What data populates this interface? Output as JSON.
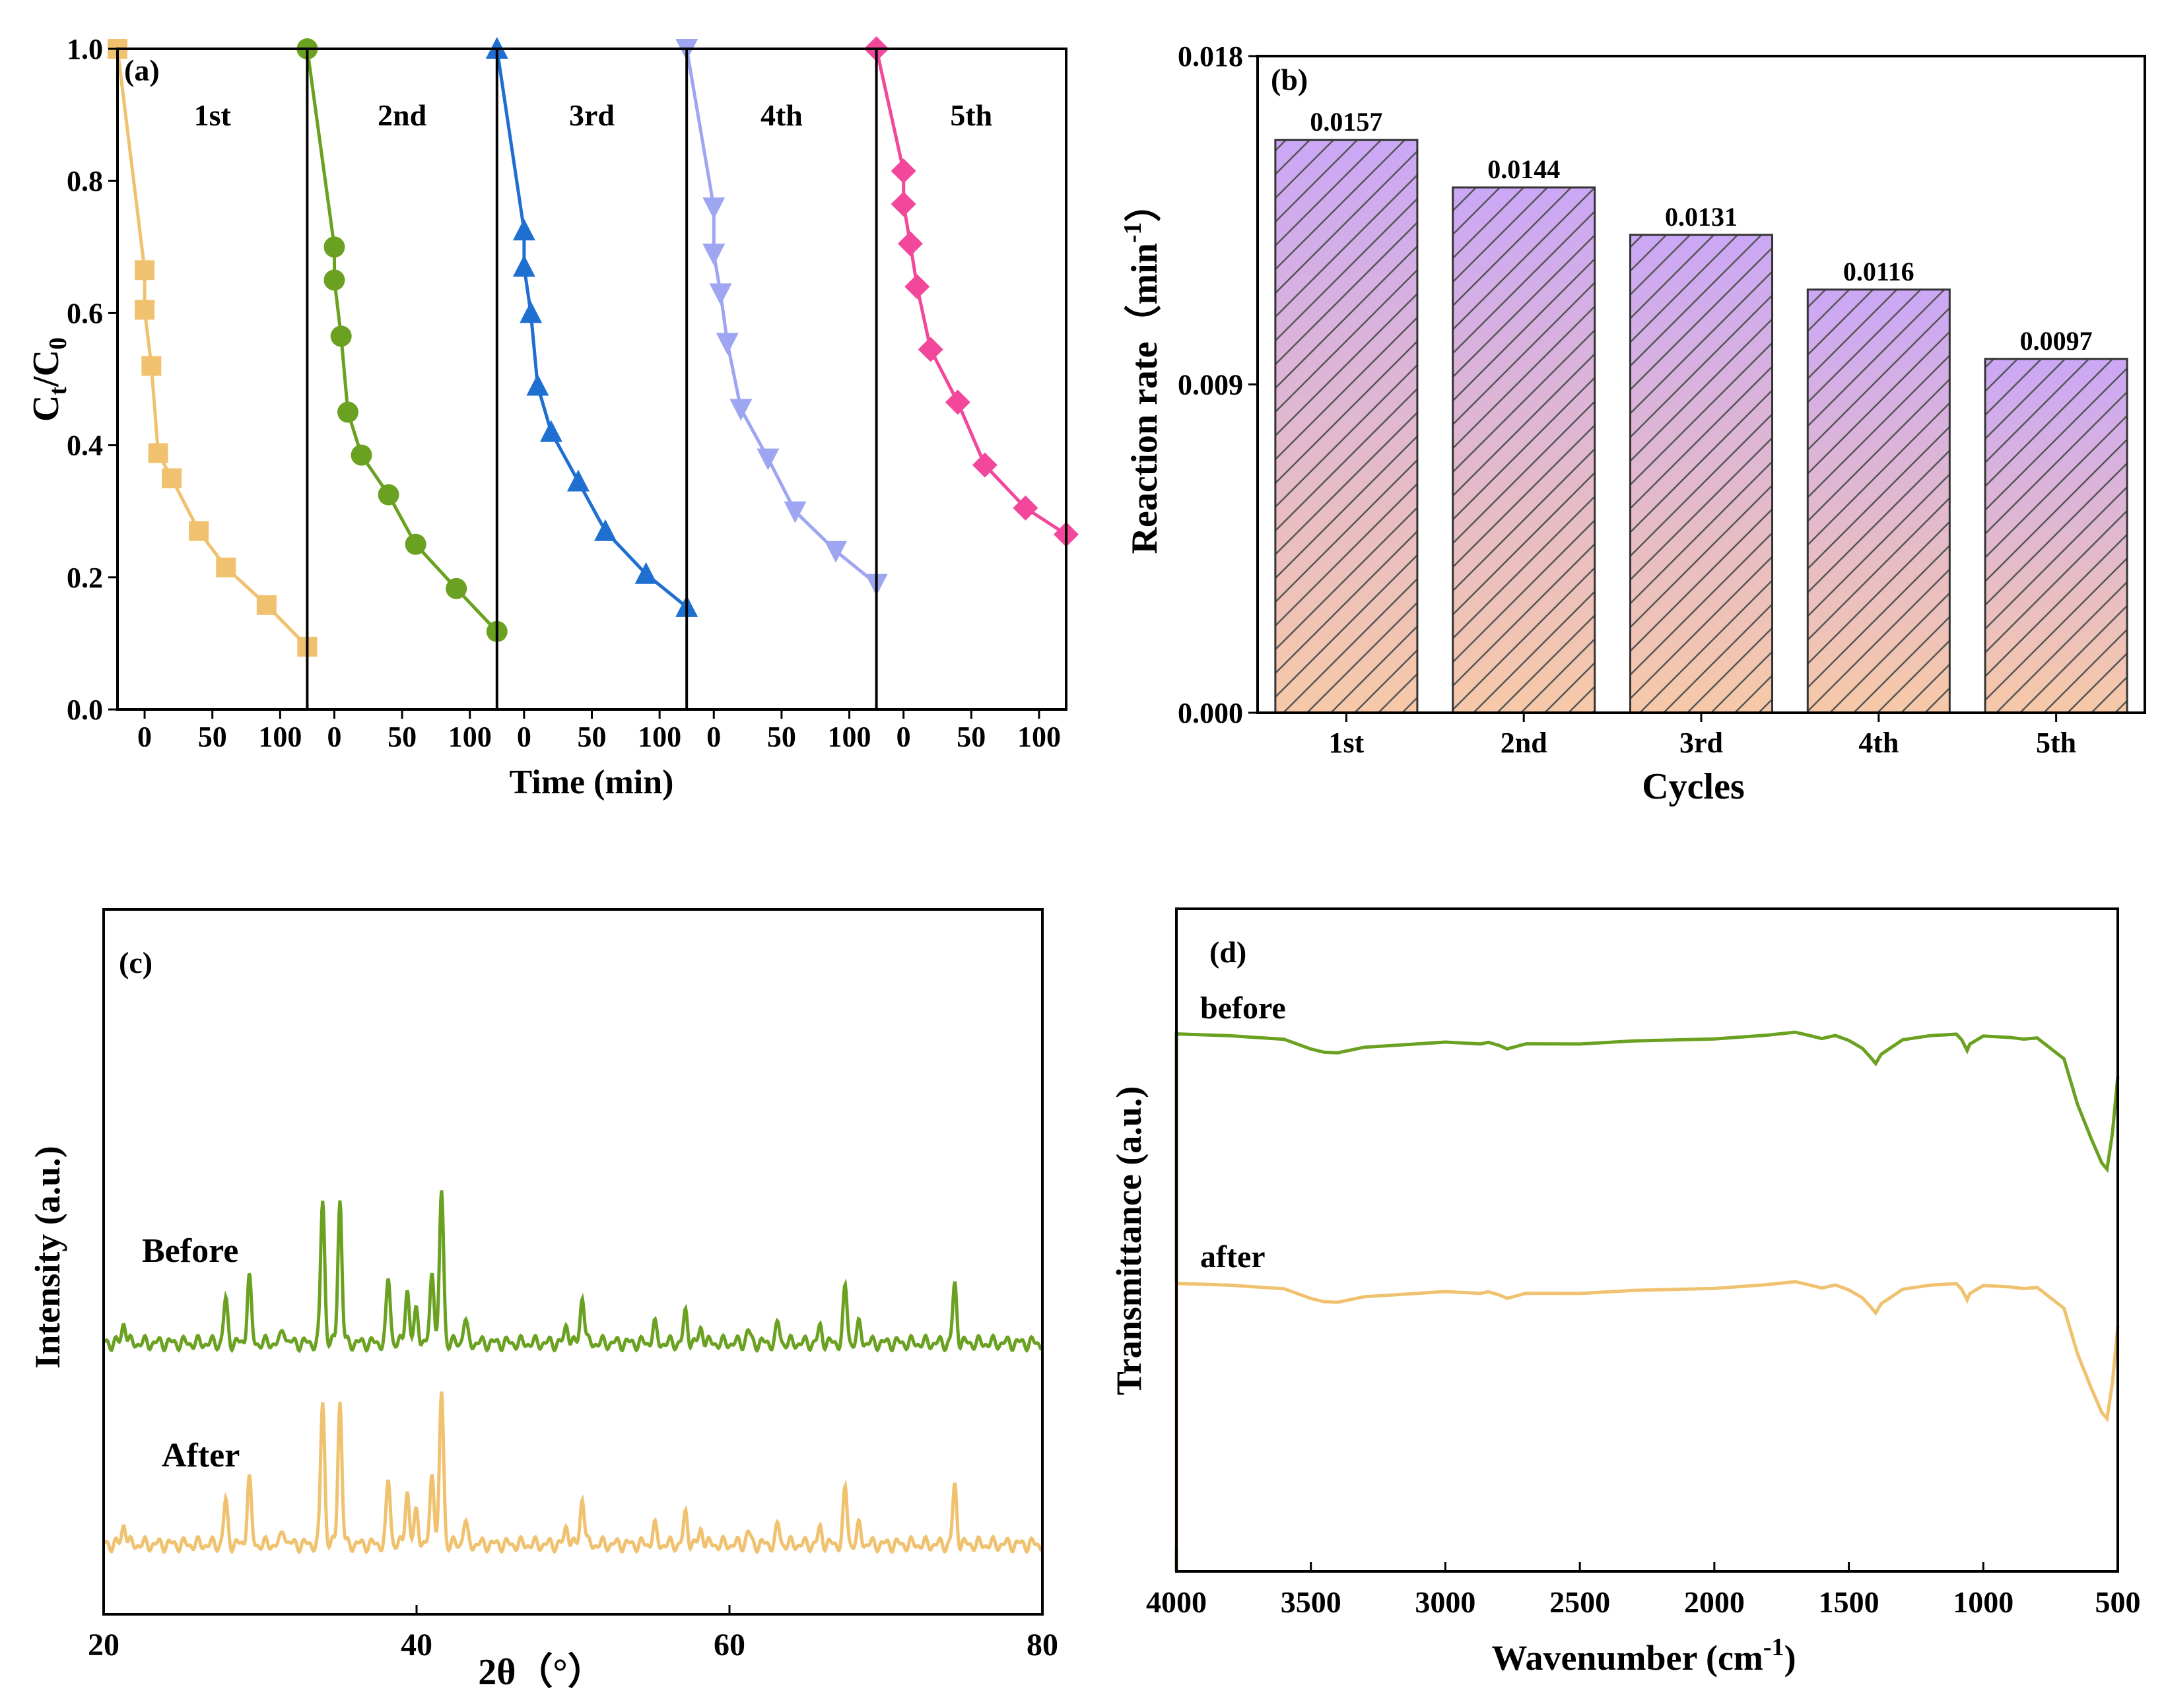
{
  "panels": {
    "a": {
      "label": "(a)",
      "ylabel_main": "C",
      "ylabel_sub1": "t",
      "ylabel_slash": "/C",
      "ylabel_sub2": "0",
      "xlabel": "Time (min)",
      "ylim": [
        0,
        1.0
      ],
      "yticks": [
        "0.0",
        "0.2",
        "0.4",
        "0.6",
        "0.8",
        "1.0"
      ],
      "xticks": [
        "0",
        "50",
        "100"
      ]
    },
    "b": {
      "label": "(b)",
      "ylabel": "Reaction rate（min",
      "ylabel_sup": "-1",
      "ylabel_end": "）",
      "xlabel": "Cycles",
      "yticks": [
        "0.000",
        "0.009",
        "0.018"
      ]
    },
    "c": {
      "label": "(c)",
      "xlabel": "2θ（°）",
      "ylabel": "Intensity (a.u.)",
      "xticks": [
        "20",
        "40",
        "60",
        "80"
      ],
      "series_labels": [
        "Before",
        "After"
      ]
    },
    "d": {
      "label": "(d)",
      "xlabel": "Wavenumber (cm",
      "xlabel_sup": "-1",
      "xlabel_end": ")",
      "ylabel": "Transmittance (a.u.)",
      "xticks": [
        "4000",
        "3500",
        "3000",
        "2500",
        "2000",
        "1500",
        "1000",
        "500"
      ],
      "series_labels": [
        "before",
        "after"
      ]
    }
  },
  "colors": {
    "c1": "#f0c26f",
    "c2": "#6aa121",
    "c3": "#1f6fd1",
    "c4": "#9ea6f2",
    "c5": "#f2479a",
    "bar_top": "#cba7f6",
    "bar_bottom": "#f7c9a8"
  },
  "chart_data": [
    {
      "type": "line",
      "title": "(a)",
      "xlabel": "Time (min)",
      "ylabel": "Ct/C0",
      "ylim": [
        0,
        1.0
      ],
      "xlim_per_panel": [
        -20,
        120
      ],
      "series": [
        {
          "name": "1st",
          "marker": "square",
          "x": [
            -20,
            0,
            0,
            5,
            10,
            20,
            40,
            60,
            90,
            120
          ],
          "y": [
            1.0,
            0.665,
            0.605,
            0.52,
            0.388,
            0.35,
            0.27,
            0.215,
            0.158,
            0.095
          ]
        },
        {
          "name": "2nd",
          "marker": "circle",
          "x": [
            -20,
            0,
            0,
            5,
            10,
            20,
            40,
            60,
            90,
            120
          ],
          "y": [
            1.0,
            0.7,
            0.65,
            0.565,
            0.45,
            0.385,
            0.325,
            0.25,
            0.183,
            0.118
          ]
        },
        {
          "name": "3rd",
          "marker": "triangle-up",
          "x": [
            -20,
            0,
            0,
            5,
            10,
            20,
            40,
            60,
            90,
            120
          ],
          "y": [
            1.0,
            0.725,
            0.67,
            0.6,
            0.49,
            0.42,
            0.345,
            0.27,
            0.205,
            0.155
          ]
        },
        {
          "name": "4th",
          "marker": "triangle-down",
          "x": [
            -20,
            0,
            0,
            5,
            10,
            20,
            40,
            60,
            90,
            120
          ],
          "y": [
            1.0,
            0.76,
            0.69,
            0.63,
            0.555,
            0.455,
            0.38,
            0.3,
            0.24,
            0.19
          ]
        },
        {
          "name": "5th",
          "marker": "diamond",
          "x": [
            -20,
            0,
            0,
            5,
            10,
            20,
            40,
            60,
            90,
            120
          ],
          "y": [
            1.0,
            0.815,
            0.765,
            0.705,
            0.64,
            0.545,
            0.465,
            0.37,
            0.305,
            0.265
          ]
        }
      ]
    },
    {
      "type": "bar",
      "title": "(b)",
      "xlabel": "Cycles",
      "ylabel": "Reaction rate (min-1)",
      "ylim": [
        0,
        0.018
      ],
      "categories": [
        "1st",
        "2nd",
        "3rd",
        "4th",
        "5th"
      ],
      "values": [
        0.0157,
        0.0144,
        0.0131,
        0.0116,
        0.0097
      ],
      "value_labels": [
        "0.0157",
        "0.0144",
        "0.0131",
        "0.0116",
        "0.0097"
      ]
    },
    {
      "type": "line",
      "title": "(c)",
      "xlabel": "2θ (°)",
      "ylabel": "Intensity (a.u.)",
      "xlim": [
        20,
        80
      ],
      "peaks_2theta": [
        21.3,
        27.8,
        29.3,
        31.5,
        34.0,
        35.1,
        38.2,
        39.4,
        40.0,
        41.0,
        41.6,
        43.1,
        49.6,
        50.6,
        55.2,
        57.2,
        58.2,
        61.2,
        63.1,
        65.8,
        67.4,
        68.3,
        74.4
      ],
      "peak_heights": [
        0.14,
        0.28,
        0.44,
        0.1,
        0.95,
        0.95,
        0.42,
        0.36,
        0.22,
        0.48,
        1.0,
        0.15,
        0.12,
        0.32,
        0.12,
        0.2,
        0.1,
        0.08,
        0.12,
        0.1,
        0.36,
        0.12,
        0.38
      ],
      "series": [
        {
          "name": "Before",
          "offset": 1
        },
        {
          "name": "After",
          "offset": 0
        }
      ]
    },
    {
      "type": "line",
      "title": "(d)",
      "xlabel": "Wavenumber (cm-1)",
      "ylabel": "Transmittance (a.u.)",
      "xlim": [
        4000,
        500
      ],
      "x": [
        4000,
        3800,
        3700,
        3600,
        3500,
        3450,
        3400,
        3300,
        3200,
        3000,
        2900,
        2870,
        2840,
        2800,
        2770,
        2700,
        2500,
        2300,
        2000,
        1800,
        1700,
        1650,
        1600,
        1550,
        1500,
        1450,
        1420,
        1400,
        1380,
        1300,
        1200,
        1100,
        1080,
        1060,
        1050,
        1000,
        900,
        850,
        800,
        700,
        650,
        600,
        560,
        540,
        520,
        500
      ],
      "series": [
        {
          "name": "before",
          "offset": 1,
          "y": [
            0.0,
            0.0,
            0.02,
            0.03,
            0.08,
            0.11,
            0.11,
            0.08,
            0.06,
            0.05,
            0.05,
            0.06,
            0.05,
            0.06,
            0.08,
            0.06,
            0.05,
            0.04,
            0.03,
            0.0,
            -0.01,
            0.0,
            0.02,
            0.01,
            0.03,
            0.08,
            0.14,
            0.18,
            0.12,
            0.03,
            0.0,
            0.0,
            0.03,
            0.09,
            0.05,
            0.01,
            0.01,
            0.03,
            0.02,
            0.15,
            0.42,
            0.62,
            0.78,
            0.82,
            0.6,
            0.25
          ]
        },
        {
          "name": "after",
          "offset": 0,
          "y": [
            0.0,
            0.0,
            0.02,
            0.03,
            0.08,
            0.11,
            0.11,
            0.08,
            0.06,
            0.05,
            0.05,
            0.06,
            0.05,
            0.06,
            0.08,
            0.06,
            0.05,
            0.04,
            0.03,
            0.0,
            -0.01,
            0.0,
            0.02,
            0.01,
            0.03,
            0.08,
            0.14,
            0.18,
            0.12,
            0.03,
            0.0,
            0.0,
            0.03,
            0.09,
            0.05,
            0.01,
            0.01,
            0.03,
            0.02,
            0.15,
            0.42,
            0.62,
            0.78,
            0.82,
            0.6,
            0.25
          ]
        }
      ]
    }
  ]
}
